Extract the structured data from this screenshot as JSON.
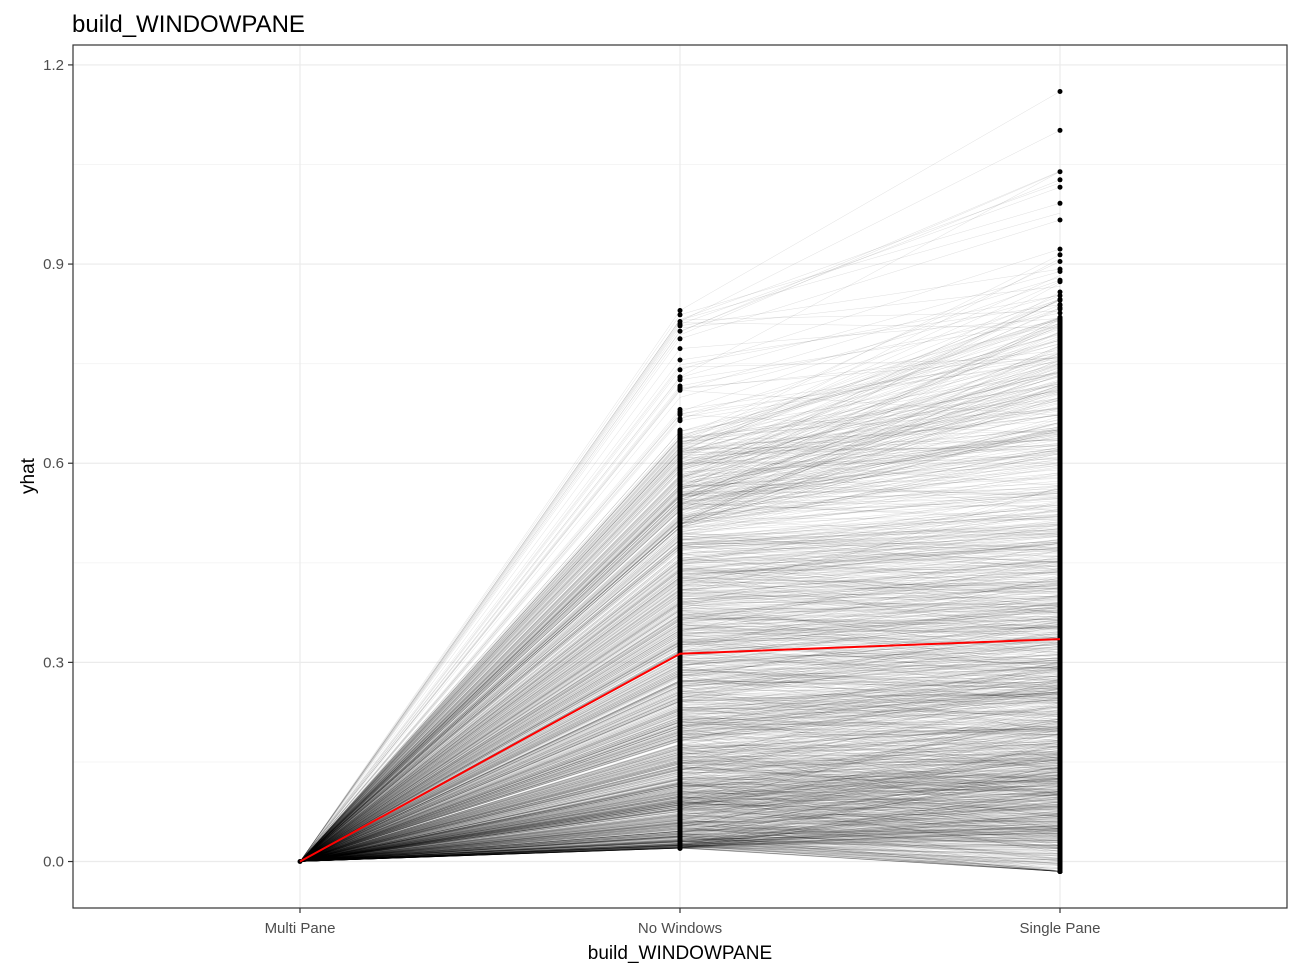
{
  "chart_data": {
    "type": "line",
    "title": "build_WINDOWPANE",
    "xlabel": "build_WINDOWPANE",
    "ylabel": "yhat",
    "categories": [
      "Multi Pane",
      "No Windows",
      "Single Pane"
    ],
    "yticks": [
      0.0,
      0.3,
      0.6,
      0.9,
      1.2
    ],
    "ytick_labels": [
      "0.0",
      "0.3",
      "0.6",
      "0.9",
      "1.2"
    ],
    "ylim": [
      -0.07,
      1.23
    ],
    "grid": true,
    "individual_lines": {
      "description_color": "#000000",
      "color": "#000000",
      "start_value": 0.0,
      "no_windows_range": [
        0.02,
        0.83
      ],
      "single_pane_range": [
        -0.015,
        1.16
      ],
      "count_estimate": 1500
    },
    "series": [
      {
        "values": [
          0.0,
          0.313,
          0.335
        ],
        "color": "#ff0000"
      }
    ],
    "colors": {
      "grid_major": "#ebebeb",
      "grid_minor": "#f5f5f5",
      "frame": "#333333",
      "highlight": "#ff0000"
    }
  }
}
